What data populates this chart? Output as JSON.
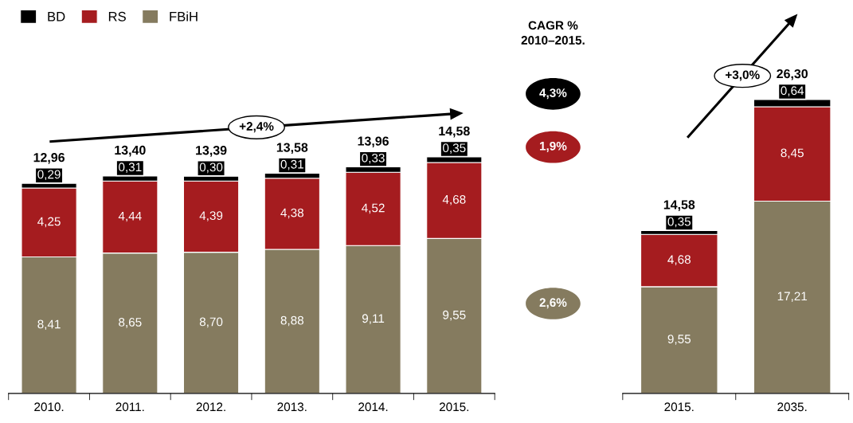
{
  "chart_data": [
    {
      "type": "bar",
      "stacked": true,
      "categories": [
        "2010.",
        "2011.",
        "2012.",
        "2013.",
        "2014.",
        "2015."
      ],
      "series": [
        {
          "name": "FBiH",
          "color": "#857b5f",
          "values": [
            8.41,
            8.65,
            8.7,
            8.88,
            9.11,
            9.55
          ],
          "value_labels": [
            "8,41",
            "8,65",
            "8,70",
            "8,88",
            "9,11",
            "9,55"
          ]
        },
        {
          "name": "RS",
          "color": "#a51c1f",
          "values": [
            4.25,
            4.44,
            4.39,
            4.38,
            4.52,
            4.68
          ],
          "value_labels": [
            "4,25",
            "4,44",
            "4,39",
            "4,38",
            "4,52",
            "4,68"
          ]
        },
        {
          "name": "BD",
          "color": "#000000",
          "values": [
            0.29,
            0.31,
            0.3,
            0.31,
            0.33,
            0.35
          ],
          "value_labels": [
            "0,29",
            "0,31",
            "0,30",
            "0,31",
            "0,33",
            "0,35"
          ]
        }
      ],
      "data_labels": true,
      "totals": [
        "12,96",
        "13,40",
        "13,39",
        "13,58",
        "13,96",
        "14,58"
      ],
      "legend": "top left",
      "tick_labels": "x",
      "grid": false,
      "annotations": [
        "+2,4%",
        "CAGR %\n2010–2015.",
        "2,6%",
        "1,9%",
        "4,3%"
      ]
    },
    {
      "type": "bar",
      "stacked": true,
      "categories": [
        "2015.",
        "2035."
      ],
      "series": [
        {
          "color": "#857b5f",
          "values": [
            9.55,
            17.21
          ],
          "value_labels": [
            "9,55",
            "17,21"
          ]
        },
        {
          "color": "#a51c1f",
          "values": [
            4.68,
            8.45
          ],
          "value_labels": [
            "4,68",
            "8,45"
          ]
        },
        {
          "color": "#000000",
          "values": [
            0.35,
            0.64
          ],
          "value_labels": [
            "0,35",
            "0,64"
          ]
        }
      ],
      "data_labels": true,
      "totals": [
        "14,58",
        "26,30"
      ],
      "legend": false,
      "tick_labels": "x",
      "grid": false,
      "annotations": [
        "+3,0%"
      ]
    }
  ]
}
